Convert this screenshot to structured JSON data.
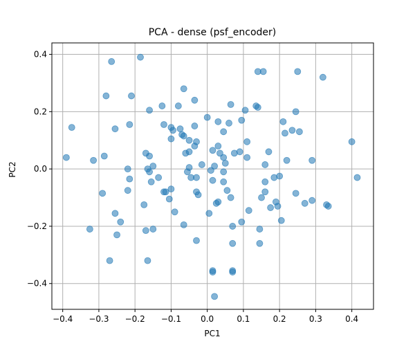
{
  "chart_data": {
    "type": "scatter",
    "title": "PCA - dense (psf_encoder)",
    "xlabel": "PC1",
    "ylabel": "PC2",
    "xlim": [
      -0.43,
      0.46
    ],
    "ylim": [
      -0.49,
      0.44
    ],
    "xticks": [
      -0.4,
      -0.3,
      -0.2,
      -0.1,
      0.0,
      0.1,
      0.2,
      0.3,
      0.4
    ],
    "yticks": [
      -0.4,
      -0.2,
      0.0,
      0.2,
      0.4
    ],
    "grid": true,
    "marker_color": "#1f77b4",
    "marker_alpha": 0.55,
    "points": [
      [
        -0.39,
        0.04
      ],
      [
        -0.375,
        0.145
      ],
      [
        -0.325,
        -0.21
      ],
      [
        -0.315,
        0.03
      ],
      [
        -0.29,
        -0.085
      ],
      [
        -0.285,
        0.045
      ],
      [
        -0.28,
        0.255
      ],
      [
        -0.27,
        -0.32
      ],
      [
        -0.265,
        0.375
      ],
      [
        -0.255,
        -0.155
      ],
      [
        -0.255,
        0.14
      ],
      [
        -0.25,
        -0.23
      ],
      [
        -0.24,
        -0.185
      ],
      [
        -0.22,
        0.0
      ],
      [
        -0.22,
        -0.075
      ],
      [
        -0.215,
        -0.035
      ],
      [
        -0.215,
        0.155
      ],
      [
        -0.21,
        0.255
      ],
      [
        -0.185,
        0.39
      ],
      [
        -0.175,
        -0.125
      ],
      [
        -0.17,
        0.055
      ],
      [
        -0.17,
        -0.215
      ],
      [
        -0.165,
        -0.32
      ],
      [
        -0.165,
        0.0
      ],
      [
        -0.16,
        0.045
      ],
      [
        -0.16,
        -0.01
      ],
      [
        -0.16,
        0.205
      ],
      [
        -0.155,
        -0.045
      ],
      [
        -0.15,
        0.01
      ],
      [
        -0.15,
        -0.21
      ],
      [
        -0.135,
        -0.03
      ],
      [
        -0.125,
        0.22
      ],
      [
        -0.12,
        0.155
      ],
      [
        -0.12,
        -0.08
      ],
      [
        -0.115,
        -0.08
      ],
      [
        -0.105,
        -0.105
      ],
      [
        -0.1,
        0.105
      ],
      [
        -0.1,
        0.145
      ],
      [
        -0.1,
        -0.07
      ],
      [
        -0.095,
        0.135
      ],
      [
        -0.09,
        -0.15
      ],
      [
        -0.08,
        0.22
      ],
      [
        -0.075,
        0.14
      ],
      [
        -0.07,
        0.12
      ],
      [
        -0.065,
        0.28
      ],
      [
        -0.065,
        0.115
      ],
      [
        -0.065,
        -0.195
      ],
      [
        -0.06,
        0.055
      ],
      [
        -0.055,
        -0.01
      ],
      [
        -0.05,
        0.06
      ],
      [
        -0.05,
        0.005
      ],
      [
        -0.05,
        0.1
      ],
      [
        -0.045,
        -0.03
      ],
      [
        -0.035,
        0.15
      ],
      [
        -0.035,
        0.24
      ],
      [
        -0.035,
        0.08
      ],
      [
        -0.03,
        0.095
      ],
      [
        -0.03,
        -0.08
      ],
      [
        -0.03,
        -0.25
      ],
      [
        -0.03,
        -0.03
      ],
      [
        -0.025,
        -0.09
      ],
      [
        -0.015,
        0.015
      ],
      [
        0.0,
        0.18
      ],
      [
        0.005,
        -0.155
      ],
      [
        0.01,
        -0.005
      ],
      [
        0.015,
        -0.36
      ],
      [
        0.015,
        -0.355
      ],
      [
        0.015,
        0.065
      ],
      [
        0.015,
        -0.04
      ],
      [
        0.02,
        -0.445
      ],
      [
        0.02,
        0.01
      ],
      [
        0.025,
        -0.12
      ],
      [
        0.03,
        0.08
      ],
      [
        0.03,
        0.165
      ],
      [
        0.03,
        -0.115
      ],
      [
        0.035,
        0.055
      ],
      [
        0.045,
        -0.01
      ],
      [
        0.045,
        -0.045
      ],
      [
        0.045,
        0.04
      ],
      [
        0.045,
        0.13
      ],
      [
        0.05,
        0.02
      ],
      [
        0.055,
        -0.075
      ],
      [
        0.06,
        0.16
      ],
      [
        0.065,
        -0.1
      ],
      [
        0.065,
        0.225
      ],
      [
        0.07,
        -0.2
      ],
      [
        0.07,
        -0.26
      ],
      [
        0.07,
        -0.355
      ],
      [
        0.07,
        -0.36
      ],
      [
        0.075,
        0.055
      ],
      [
        0.09,
        0.06
      ],
      [
        0.095,
        -0.185
      ],
      [
        0.095,
        0.17
      ],
      [
        0.105,
        0.205
      ],
      [
        0.11,
        0.095
      ],
      [
        0.11,
        0.04
      ],
      [
        0.115,
        -0.145
      ],
      [
        0.135,
        0.22
      ],
      [
        0.14,
        0.215
      ],
      [
        0.14,
        0.34
      ],
      [
        0.145,
        -0.21
      ],
      [
        0.145,
        -0.26
      ],
      [
        0.15,
        -0.1
      ],
      [
        0.155,
        0.34
      ],
      [
        0.16,
        0.015
      ],
      [
        0.16,
        -0.045
      ],
      [
        0.16,
        -0.08
      ],
      [
        0.17,
        0.06
      ],
      [
        0.175,
        -0.135
      ],
      [
        0.185,
        -0.03
      ],
      [
        0.19,
        -0.115
      ],
      [
        0.195,
        -0.13
      ],
      [
        0.2,
        -0.025
      ],
      [
        0.205,
        -0.18
      ],
      [
        0.21,
        0.165
      ],
      [
        0.215,
        0.125
      ],
      [
        0.22,
        0.03
      ],
      [
        0.235,
        0.135
      ],
      [
        0.245,
        0.2
      ],
      [
        0.245,
        -0.085
      ],
      [
        0.25,
        0.34
      ],
      [
        0.255,
        0.13
      ],
      [
        0.27,
        -0.12
      ],
      [
        0.29,
        -0.11
      ],
      [
        0.29,
        0.03
      ],
      [
        0.32,
        0.32
      ],
      [
        0.33,
        -0.125
      ],
      [
        0.335,
        -0.13
      ],
      [
        0.4,
        0.095
      ],
      [
        0.415,
        -0.03
      ]
    ]
  }
}
